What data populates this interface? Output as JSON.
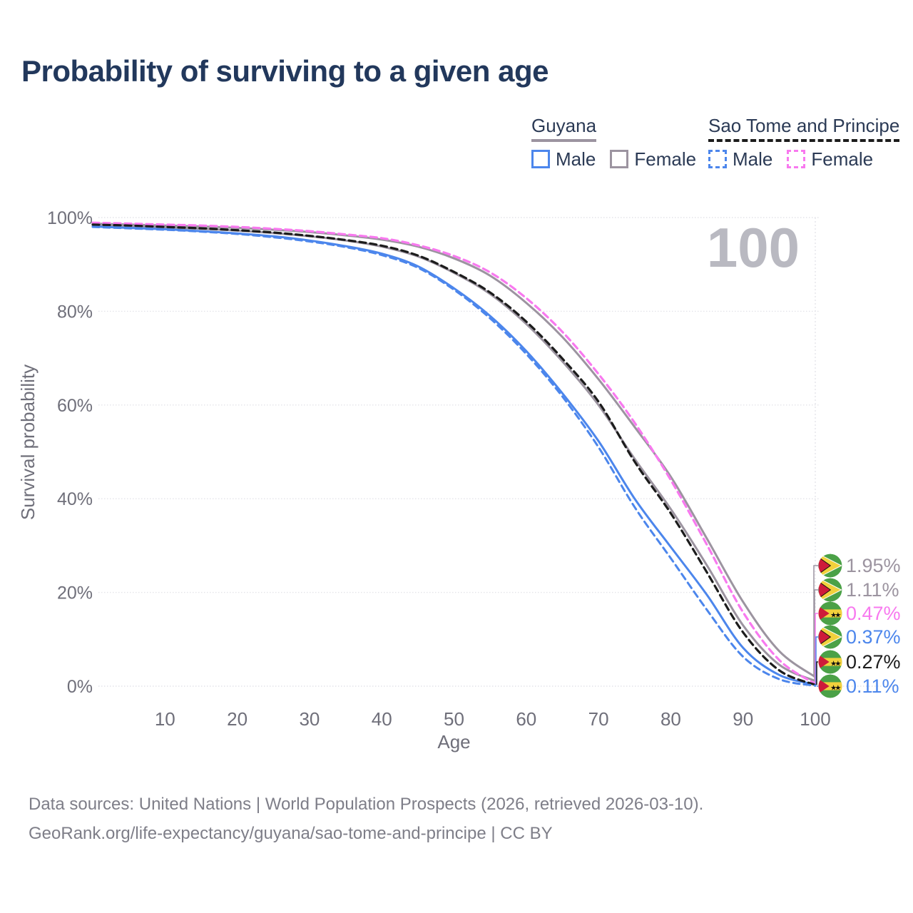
{
  "title": "Probability of surviving to a given age",
  "legend": {
    "groups": [
      {
        "name": "Guyana",
        "line_style": "solid",
        "underline_color": "#9c94a0",
        "items": [
          {
            "label": "Male",
            "color": "#4c86ec",
            "dashed": false
          },
          {
            "label": "Female",
            "color": "#9c94a0",
            "dashed": false
          }
        ]
      },
      {
        "name": "Sao Tome and Principe",
        "line_style": "dashed",
        "underline_color": "#1c1c1c",
        "items": [
          {
            "label": "Male",
            "color": "#4c86ec",
            "dashed": true
          },
          {
            "label": "Female",
            "color": "#f879ef",
            "dashed": true
          }
        ]
      }
    ]
  },
  "age_watermark": "100",
  "chart_data": {
    "type": "line",
    "title": "Probability of surviving to a given age",
    "xlabel": "Age",
    "ylabel": "Survival probability",
    "xlim": [
      0,
      100
    ],
    "ylim": [
      0,
      100
    ],
    "x_ticks": [
      10,
      20,
      30,
      40,
      50,
      60,
      70,
      80,
      90,
      100
    ],
    "y_ticks": [
      {
        "value": 0,
        "label": "0%"
      },
      {
        "value": 20,
        "label": "20%"
      },
      {
        "value": 40,
        "label": "40%"
      },
      {
        "value": 60,
        "label": "60%"
      },
      {
        "value": 80,
        "label": "80%"
      },
      {
        "value": 100,
        "label": "100%"
      }
    ],
    "grid": "horizontal",
    "x": [
      0,
      5,
      10,
      15,
      20,
      25,
      30,
      35,
      40,
      45,
      50,
      55,
      60,
      65,
      70,
      75,
      80,
      85,
      90,
      95,
      100
    ],
    "series": [
      {
        "name": "Guyana Female",
        "country": "Guyana",
        "sex": "Female",
        "color": "#9c94a0",
        "dash": null,
        "width": 3,
        "values": [
          98.7,
          98.5,
          98.3,
          98.1,
          97.8,
          97.4,
          96.9,
          96.2,
          95.3,
          93.8,
          91.3,
          87.6,
          81.8,
          74.5,
          65.5,
          55.3,
          44.7,
          31.5,
          18.0,
          7.5,
          1.95
        ]
      },
      {
        "name": "Guyana",
        "country": "Guyana",
        "sex": "Total",
        "color": "#9c94a0",
        "dash": null,
        "width": 3,
        "values": [
          98.4,
          98.2,
          97.9,
          97.6,
          97.2,
          96.7,
          96.0,
          95.1,
          93.8,
          91.7,
          88.2,
          83.7,
          77.3,
          69.3,
          60.0,
          48.5,
          37.8,
          25.8,
          13.0,
          4.6,
          1.11
        ]
      },
      {
        "name": "Guyana Male",
        "country": "Guyana",
        "sex": "Male",
        "color": "#4c86ec",
        "dash": null,
        "width": 3,
        "values": [
          98.1,
          97.8,
          97.5,
          97.1,
          96.6,
          96.0,
          95.1,
          93.9,
          92.3,
          89.6,
          84.9,
          79.0,
          71.5,
          62.5,
          52.3,
          40.0,
          29.7,
          19.5,
          8.2,
          2.4,
          0.37
        ]
      },
      {
        "name": "Sao Tome and Principe Female",
        "country": "Sao Tome and Principe",
        "sex": "Female",
        "color": "#f879ef",
        "dash": "9 6",
        "width": 3.2,
        "values": [
          98.9,
          98.7,
          98.5,
          98.3,
          98.0,
          97.6,
          97.1,
          96.4,
          95.6,
          94.1,
          91.8,
          88.3,
          82.8,
          75.6,
          66.6,
          56.2,
          44.0,
          30.2,
          15.8,
          5.6,
          0.47
        ]
      },
      {
        "name": "Sao Tome and Principe",
        "country": "Sao Tome and Principe",
        "sex": "Total",
        "color": "#1c1c1c",
        "dash": "9 6",
        "width": 3.2,
        "values": [
          98.5,
          98.3,
          98.0,
          97.7,
          97.3,
          96.8,
          96.1,
          95.2,
          94.0,
          91.9,
          88.4,
          84.0,
          77.8,
          69.9,
          60.7,
          47.9,
          36.9,
          24.3,
          11.5,
          3.4,
          0.27
        ]
      },
      {
        "name": "Sao Tome and Principe Male",
        "country": "Sao Tome and Principe",
        "sex": "Male",
        "color": "#4c86ec",
        "dash": "9 6",
        "width": 3,
        "values": [
          98.0,
          97.7,
          97.4,
          97.0,
          96.5,
          95.8,
          94.9,
          93.7,
          92.0,
          89.3,
          84.6,
          78.5,
          70.9,
          61.8,
          51.0,
          38.2,
          27.3,
          16.3,
          6.3,
          1.5,
          0.11
        ]
      }
    ],
    "end_labels": [
      {
        "series": "Guyana Female",
        "flag": "guyana",
        "text": "1.95%",
        "value": 1.95,
        "color": "#9c94a0"
      },
      {
        "series": "Guyana",
        "flag": "guyana",
        "text": "1.11%",
        "value": 1.11,
        "color": "#9c94a0"
      },
      {
        "series": "Sao Tome and Principe Female",
        "flag": "sao-tome",
        "text": "0.47%",
        "value": 0.47,
        "color": "#f879ef"
      },
      {
        "series": "Guyana Male",
        "flag": "guyana",
        "text": "0.37%",
        "value": 0.37,
        "color": "#4c86ec"
      },
      {
        "series": "Sao Tome and Principe",
        "flag": "sao-tome",
        "text": "0.27%",
        "value": 0.27,
        "color": "#1c1c1c"
      },
      {
        "series": "Sao Tome and Principe Male",
        "flag": "sao-tome",
        "text": "0.11%",
        "value": 0.11,
        "color": "#4c86ec"
      }
    ],
    "flag_colors": {
      "green": "#4ba147",
      "yellow": "#f2d13c",
      "red": "#ce1b3a",
      "black": "#111111"
    }
  },
  "footer": {
    "line1": "Data sources: United Nations | World Population Prospects (2026, retrieved 2026-03-10).",
    "line2": "GeoRank.org/life-expectancy/guyana/sao-tome-and-principe | CC BY"
  }
}
